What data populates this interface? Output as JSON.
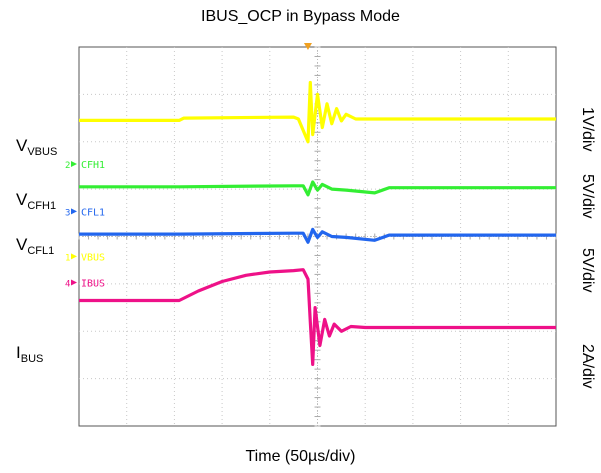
{
  "chart_data": {
    "type": "line",
    "title": "IBUS_OCP in Bypass Mode",
    "xlabel": "Time (50µs/div)",
    "x_divisions": 10,
    "y_divisions": 8,
    "grid": true,
    "trigger_marker_div": 4.8,
    "channels": [
      {
        "id": "ch1",
        "label_main": "V",
        "label_sub": "VBUS",
        "marker": "1",
        "marker_text": "VBUS",
        "scale": "1V/div",
        "color": "#ffff00",
        "samples": [
          [
            0,
            1.55
          ],
          [
            2.1,
            1.55
          ],
          [
            2.2,
            1.5
          ],
          [
            4.5,
            1.48
          ],
          [
            4.6,
            1.52
          ],
          [
            4.8,
            2.0
          ],
          [
            4.85,
            0.75
          ],
          [
            4.9,
            1.85
          ],
          [
            5.0,
            1.0
          ],
          [
            5.1,
            1.7
          ],
          [
            5.2,
            1.2
          ],
          [
            5.3,
            1.62
          ],
          [
            5.4,
            1.3
          ],
          [
            5.5,
            1.56
          ],
          [
            5.6,
            1.42
          ],
          [
            5.8,
            1.52
          ],
          [
            10,
            1.52
          ]
        ]
      },
      {
        "id": "ch2",
        "label_main": "V",
        "label_sub": "CFH1",
        "marker": "2",
        "marker_text": "CFH1",
        "scale": "5V/div",
        "color": "#33ee33",
        "samples": [
          [
            0,
            2.95
          ],
          [
            2.1,
            2.95
          ],
          [
            4.5,
            2.93
          ],
          [
            4.7,
            2.93
          ],
          [
            4.8,
            3.12
          ],
          [
            4.9,
            2.85
          ],
          [
            5.0,
            3.02
          ],
          [
            5.1,
            2.9
          ],
          [
            5.3,
            3.0
          ],
          [
            5.6,
            3.02
          ],
          [
            6.2,
            3.08
          ],
          [
            6.5,
            2.97
          ],
          [
            10,
            2.97
          ]
        ]
      },
      {
        "id": "ch3",
        "label_main": "V",
        "label_sub": "CFL1",
        "marker": "3",
        "marker_text": "CFL1",
        "scale": "5V/div",
        "color": "#2266ee",
        "samples": [
          [
            0,
            3.95
          ],
          [
            2.1,
            3.95
          ],
          [
            4.5,
            3.93
          ],
          [
            4.7,
            3.93
          ],
          [
            4.8,
            4.12
          ],
          [
            4.9,
            3.85
          ],
          [
            5.0,
            4.02
          ],
          [
            5.1,
            3.9
          ],
          [
            5.3,
            4.0
          ],
          [
            5.6,
            4.02
          ],
          [
            6.2,
            4.08
          ],
          [
            6.5,
            3.97
          ],
          [
            10,
            3.97
          ]
        ]
      },
      {
        "id": "ch4",
        "label_main": "I",
        "label_sub": "BUS",
        "marker": "4",
        "marker_text": "IBUS",
        "scale": "2A/div",
        "color": "#ee1188",
        "samples": [
          [
            0,
            5.35
          ],
          [
            2.1,
            5.35
          ],
          [
            2.5,
            5.15
          ],
          [
            3.0,
            4.95
          ],
          [
            3.5,
            4.82
          ],
          [
            4.0,
            4.75
          ],
          [
            4.5,
            4.72
          ],
          [
            4.7,
            4.7
          ],
          [
            4.8,
            4.9
          ],
          [
            4.85,
            5.8
          ],
          [
            4.9,
            6.7
          ],
          [
            4.95,
            5.5
          ],
          [
            5.05,
            6.3
          ],
          [
            5.15,
            5.75
          ],
          [
            5.25,
            6.1
          ],
          [
            5.35,
            5.85
          ],
          [
            5.5,
            6.0
          ],
          [
            5.7,
            5.9
          ],
          [
            6.0,
            5.92
          ],
          [
            10,
            5.92
          ]
        ]
      }
    ]
  }
}
